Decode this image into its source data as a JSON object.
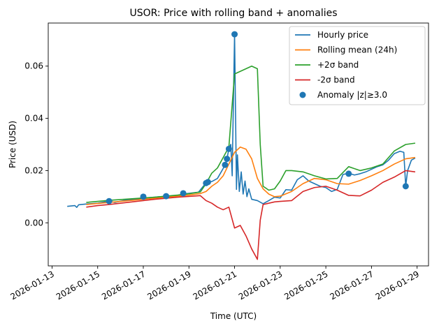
{
  "chart_data": {
    "type": "line",
    "title": "USOR: Price with rolling band + anomalies",
    "xlabel": "Time (UTC)",
    "ylabel": "Price (USD)",
    "xlim": [
      "2026-01-12T20:00",
      "2026-01-29T12:00"
    ],
    "ylim": [
      -0.0165,
      0.0765
    ],
    "grid": false,
    "legend_position": "upper right",
    "x_ticks": [
      "2026-01-13",
      "2026-01-15",
      "2026-01-17",
      "2026-01-19",
      "2026-01-21",
      "2026-01-23",
      "2026-01-25",
      "2026-01-27",
      "2026-01-29"
    ],
    "y_ticks": [
      0.0,
      0.02,
      0.04,
      0.06
    ],
    "y_tick_labels": [
      "0.00",
      "0.02",
      "0.04",
      "0.06"
    ],
    "series": [
      {
        "name": "Hourly price",
        "kind": "line",
        "color": "#1f77b4",
        "points": [
          [
            "2026-01-13T16:00",
            0.0063
          ],
          [
            "2026-01-14T00:00",
            0.0066
          ],
          [
            "2026-01-14T02:00",
            0.0059
          ],
          [
            "2026-01-14T04:00",
            0.0069
          ],
          [
            "2026-01-14T12:00",
            0.0072
          ],
          [
            "2026-01-15T00:00",
            0.0075
          ],
          [
            "2026-01-15T12:00",
            0.0083
          ],
          [
            "2026-01-15T18:00",
            0.0078
          ],
          [
            "2026-01-16T06:00",
            0.0087
          ],
          [
            "2026-01-16T18:00",
            0.009
          ],
          [
            "2026-01-17T06:00",
            0.0096
          ],
          [
            "2026-01-17T18:00",
            0.01
          ],
          [
            "2026-01-18T06:00",
            0.0101
          ],
          [
            "2026-01-18T20:00",
            0.0111
          ],
          [
            "2026-01-19T10:00",
            0.0117
          ],
          [
            "2026-01-19T18:00",
            0.0153
          ],
          [
            "2026-01-20T00:00",
            0.0158
          ],
          [
            "2026-01-20T06:00",
            0.017
          ],
          [
            "2026-01-20T12:00",
            0.0208
          ],
          [
            "2026-01-20T14:00",
            0.0222
          ],
          [
            "2026-01-20T16:00",
            0.0245
          ],
          [
            "2026-01-20T18:00",
            0.0283
          ],
          [
            "2026-01-20T20:00",
            0.03
          ],
          [
            "2026-01-20T21:30",
            0.018
          ],
          [
            "2026-01-20T22:00",
            0.03
          ],
          [
            "2026-01-21T00:00",
            0.0722
          ],
          [
            "2026-01-21T02:00",
            0.0128
          ],
          [
            "2026-01-21T03:00",
            0.026
          ],
          [
            "2026-01-21T05:00",
            0.012
          ],
          [
            "2026-01-21T07:00",
            0.0195
          ],
          [
            "2026-01-21T09:00",
            0.011
          ],
          [
            "2026-01-21T11:00",
            0.016
          ],
          [
            "2026-01-21T13:00",
            0.01
          ],
          [
            "2026-01-21T15:00",
            0.013
          ],
          [
            "2026-01-21T18:00",
            0.009
          ],
          [
            "2026-01-22T00:00",
            0.0085
          ],
          [
            "2026-01-22T06:00",
            0.0073
          ],
          [
            "2026-01-22T12:00",
            0.0085
          ],
          [
            "2026-01-22T18:00",
            0.0098
          ],
          [
            "2026-01-23T00:00",
            0.0095
          ],
          [
            "2026-01-23T06:00",
            0.0127
          ],
          [
            "2026-01-23T12:00",
            0.0125
          ],
          [
            "2026-01-23T18:00",
            0.0165
          ],
          [
            "2026-01-24T00:00",
            0.018
          ],
          [
            "2026-01-24T06:00",
            0.016
          ],
          [
            "2026-01-24T12:00",
            0.015
          ],
          [
            "2026-01-24T18:00",
            0.014
          ],
          [
            "2026-01-25T00:00",
            0.0135
          ],
          [
            "2026-01-25T06:00",
            0.012
          ],
          [
            "2026-01-25T12:00",
            0.0128
          ],
          [
            "2026-01-25T18:00",
            0.0185
          ],
          [
            "2026-01-26T00:00",
            0.019
          ],
          [
            "2026-01-26T06:00",
            0.0183
          ],
          [
            "2026-01-26T12:00",
            0.0188
          ],
          [
            "2026-01-26T18:00",
            0.0195
          ],
          [
            "2026-01-27T00:00",
            0.0205
          ],
          [
            "2026-01-27T06:00",
            0.0215
          ],
          [
            "2026-01-27T12:00",
            0.0222
          ],
          [
            "2026-01-27T18:00",
            0.024
          ],
          [
            "2026-01-28T00:00",
            0.0265
          ],
          [
            "2026-01-28T06:00",
            0.0274
          ],
          [
            "2026-01-28T10:00",
            0.027
          ],
          [
            "2026-01-28T12:00",
            0.014
          ],
          [
            "2026-01-28T14:00",
            0.02
          ],
          [
            "2026-01-28T18:00",
            0.024
          ],
          [
            "2026-01-28T22:00",
            0.0248
          ]
        ]
      },
      {
        "name": "Rolling mean (24h)",
        "kind": "line",
        "color": "#ff7f0e",
        "points": [
          [
            "2026-01-14T12:00",
            0.007
          ],
          [
            "2026-01-15T00:00",
            0.0074
          ],
          [
            "2026-01-15T12:00",
            0.0078
          ],
          [
            "2026-01-16T00:00",
            0.0082
          ],
          [
            "2026-01-16T12:00",
            0.0086
          ],
          [
            "2026-01-17T00:00",
            0.009
          ],
          [
            "2026-01-17T12:00",
            0.0094
          ],
          [
            "2026-01-18T00:00",
            0.0098
          ],
          [
            "2026-01-18T12:00",
            0.0102
          ],
          [
            "2026-01-19T00:00",
            0.0106
          ],
          [
            "2026-01-19T12:00",
            0.0112
          ],
          [
            "2026-01-19T18:00",
            0.012
          ],
          [
            "2026-01-20T00:00",
            0.014
          ],
          [
            "2026-01-20T06:00",
            0.0155
          ],
          [
            "2026-01-20T12:00",
            0.018
          ],
          [
            "2026-01-20T18:00",
            0.0225
          ],
          [
            "2026-01-21T00:00",
            0.027
          ],
          [
            "2026-01-21T06:00",
            0.029
          ],
          [
            "2026-01-21T12:00",
            0.0282
          ],
          [
            "2026-01-21T18:00",
            0.0245
          ],
          [
            "2026-01-22T00:00",
            0.017
          ],
          [
            "2026-01-22T06:00",
            0.013
          ],
          [
            "2026-01-22T12:00",
            0.011
          ],
          [
            "2026-01-22T18:00",
            0.01
          ],
          [
            "2026-01-23T00:00",
            0.0102
          ],
          [
            "2026-01-23T12:00",
            0.012
          ],
          [
            "2026-01-24T00:00",
            0.015
          ],
          [
            "2026-01-24T12:00",
            0.017
          ],
          [
            "2026-01-25T00:00",
            0.0165
          ],
          [
            "2026-01-25T12:00",
            0.015
          ],
          [
            "2026-01-26T00:00",
            0.0148
          ],
          [
            "2026-01-26T12:00",
            0.0162
          ],
          [
            "2026-01-27T00:00",
            0.018
          ],
          [
            "2026-01-27T12:00",
            0.02
          ],
          [
            "2026-01-28T00:00",
            0.0225
          ],
          [
            "2026-01-28T12:00",
            0.0245
          ],
          [
            "2026-01-28T22:00",
            0.025
          ]
        ]
      },
      {
        "name": "+2σ band",
        "kind": "line",
        "color": "#2ca02c",
        "points": [
          [
            "2026-01-14T12:00",
            0.0078
          ],
          [
            "2026-01-15T00:00",
            0.0082
          ],
          [
            "2026-01-15T12:00",
            0.0086
          ],
          [
            "2026-01-16T00:00",
            0.0089
          ],
          [
            "2026-01-16T12:00",
            0.0092
          ],
          [
            "2026-01-17T00:00",
            0.0095
          ],
          [
            "2026-01-17T12:00",
            0.0098
          ],
          [
            "2026-01-18T00:00",
            0.0102
          ],
          [
            "2026-01-18T12:00",
            0.0106
          ],
          [
            "2026-01-19T00:00",
            0.0111
          ],
          [
            "2026-01-19T12:00",
            0.0118
          ],
          [
            "2026-01-19T18:00",
            0.015
          ],
          [
            "2026-01-20T00:00",
            0.019
          ],
          [
            "2026-01-20T06:00",
            0.021
          ],
          [
            "2026-01-20T12:00",
            0.025
          ],
          [
            "2026-01-20T18:00",
            0.029
          ],
          [
            "2026-01-21T00:00",
            0.057
          ],
          [
            "2026-01-21T06:00",
            0.058
          ],
          [
            "2026-01-21T12:00",
            0.059
          ],
          [
            "2026-01-21T18:00",
            0.06
          ],
          [
            "2026-01-22T00:00",
            0.059
          ],
          [
            "2026-01-22T03:00",
            0.03
          ],
          [
            "2026-01-22T06:00",
            0.014
          ],
          [
            "2026-01-22T12:00",
            0.0125
          ],
          [
            "2026-01-22T18:00",
            0.013
          ],
          [
            "2026-01-23T00:00",
            0.016
          ],
          [
            "2026-01-23T06:00",
            0.02
          ],
          [
            "2026-01-23T12:00",
            0.02
          ],
          [
            "2026-01-24T00:00",
            0.0195
          ],
          [
            "2026-01-24T12:00",
            0.018
          ],
          [
            "2026-01-25T00:00",
            0.0168
          ],
          [
            "2026-01-25T12:00",
            0.017
          ],
          [
            "2026-01-26T00:00",
            0.0215
          ],
          [
            "2026-01-26T12:00",
            0.02
          ],
          [
            "2026-01-27T00:00",
            0.021
          ],
          [
            "2026-01-27T12:00",
            0.0225
          ],
          [
            "2026-01-28T00:00",
            0.0275
          ],
          [
            "2026-01-28T12:00",
            0.03
          ],
          [
            "2026-01-28T22:00",
            0.0305
          ]
        ]
      },
      {
        "name": "-2σ band",
        "kind": "line",
        "color": "#d62728",
        "points": [
          [
            "2026-01-14T12:00",
            0.006
          ],
          [
            "2026-01-15T00:00",
            0.0066
          ],
          [
            "2026-01-15T12:00",
            0.007
          ],
          [
            "2026-01-16T00:00",
            0.0075
          ],
          [
            "2026-01-16T12:00",
            0.008
          ],
          [
            "2026-01-17T00:00",
            0.0085
          ],
          [
            "2026-01-17T12:00",
            0.009
          ],
          [
            "2026-01-18T00:00",
            0.0094
          ],
          [
            "2026-01-18T12:00",
            0.0098
          ],
          [
            "2026-01-19T00:00",
            0.0101
          ],
          [
            "2026-01-19T12:00",
            0.0104
          ],
          [
            "2026-01-19T18:00",
            0.0085
          ],
          [
            "2026-01-20T00:00",
            0.0075
          ],
          [
            "2026-01-20T06:00",
            0.006
          ],
          [
            "2026-01-20T12:00",
            0.005
          ],
          [
            "2026-01-20T18:00",
            0.006
          ],
          [
            "2026-01-21T00:00",
            -0.002
          ],
          [
            "2026-01-21T06:00",
            -0.001
          ],
          [
            "2026-01-21T12:00",
            -0.005
          ],
          [
            "2026-01-21T18:00",
            -0.01
          ],
          [
            "2026-01-22T00:00",
            -0.014
          ],
          [
            "2026-01-22T03:00",
            0.001
          ],
          [
            "2026-01-22T06:00",
            0.007
          ],
          [
            "2026-01-22T12:00",
            0.0075
          ],
          [
            "2026-01-22T18:00",
            0.008
          ],
          [
            "2026-01-23T00:00",
            0.0082
          ],
          [
            "2026-01-23T12:00",
            0.0085
          ],
          [
            "2026-01-24T00:00",
            0.012
          ],
          [
            "2026-01-24T12:00",
            0.0135
          ],
          [
            "2026-01-25T00:00",
            0.014
          ],
          [
            "2026-01-25T12:00",
            0.0125
          ],
          [
            "2026-01-26T00:00",
            0.0105
          ],
          [
            "2026-01-26T12:00",
            0.0103
          ],
          [
            "2026-01-27T00:00",
            0.0125
          ],
          [
            "2026-01-27T12:00",
            0.0155
          ],
          [
            "2026-01-28T00:00",
            0.0175
          ],
          [
            "2026-01-28T12:00",
            0.02
          ],
          [
            "2026-01-28T22:00",
            0.0195
          ]
        ]
      },
      {
        "name": "Anomaly |z|≥3.0",
        "kind": "scatter",
        "color": "#1f77b4",
        "points": [
          [
            "2026-01-15T12:00",
            0.0083
          ],
          [
            "2026-01-17T00:00",
            0.01
          ],
          [
            "2026-01-18T00:00",
            0.0102
          ],
          [
            "2026-01-18T18:00",
            0.0113
          ],
          [
            "2026-01-19T18:00",
            0.0152
          ],
          [
            "2026-01-19T20:00",
            0.0156
          ],
          [
            "2026-01-20T14:00",
            0.0222
          ],
          [
            "2026-01-20T16:00",
            0.0245
          ],
          [
            "2026-01-20T18:00",
            0.0283
          ],
          [
            "2026-01-21T00:00",
            0.0722
          ],
          [
            "2026-01-26T00:00",
            0.0188
          ],
          [
            "2026-01-28T12:00",
            0.014
          ]
        ]
      }
    ]
  }
}
